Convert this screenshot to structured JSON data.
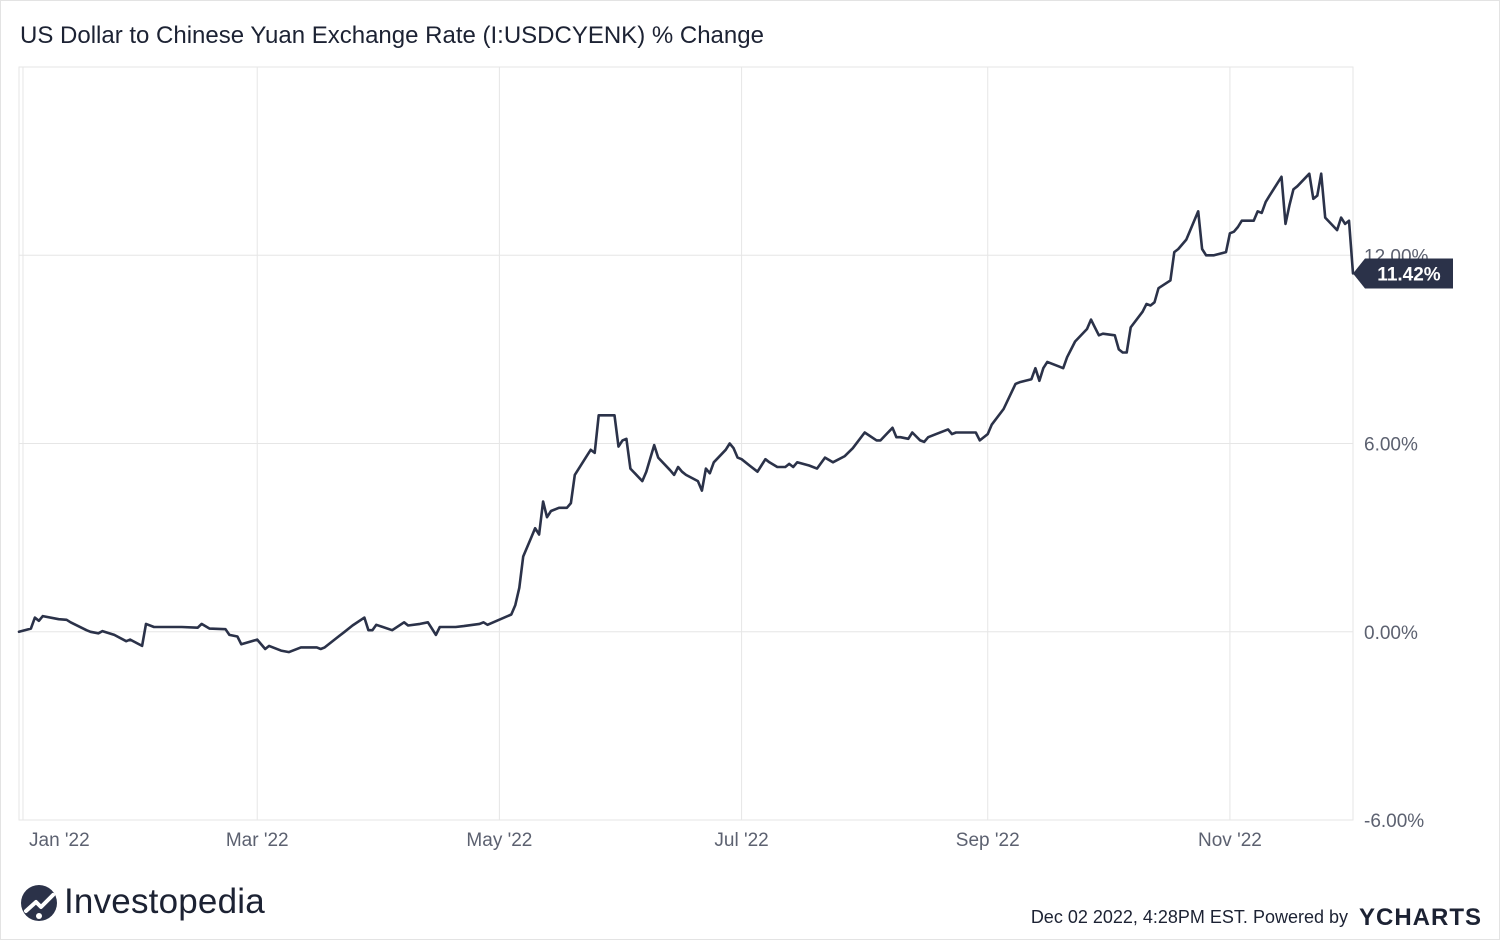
{
  "colors": {
    "line": "#2b3249",
    "grid": "#e6e6e6",
    "badge": "#2b3249",
    "text": "#1c2233",
    "tick": "#5c6170"
  },
  "chart_data": {
    "type": "line",
    "title": "US Dollar to Chinese Yuan Exchange Rate (I:USDCYENK) % Change",
    "xlabel": "",
    "ylabel": "",
    "x_range": [
      "2021-12-31",
      "2022-12-02"
    ],
    "ylim": [
      -6,
      18
    ],
    "y_ticks": [
      -6,
      0,
      6,
      12
    ],
    "y_tick_labels": [
      "-6.00%",
      "0.00%",
      "6.00%",
      "12.00%"
    ],
    "x_ticks": [
      "2022-01-01",
      "2022-03-01",
      "2022-05-01",
      "2022-07-01",
      "2022-09-01",
      "2022-11-01"
    ],
    "x_tick_labels": [
      "Jan '22",
      "Mar '22",
      "May '22",
      "Jul '22",
      "Sep '22",
      "Nov '22"
    ],
    "grid": true,
    "last_value_label": "11.42%",
    "series": [
      {
        "values": [
          [
            "2021-12-31",
            0.0
          ],
          [
            "2022-01-03",
            0.1
          ],
          [
            "2022-01-04",
            0.45
          ],
          [
            "2022-01-05",
            0.35
          ],
          [
            "2022-01-06",
            0.5
          ],
          [
            "2022-01-10",
            0.4
          ],
          [
            "2022-01-12",
            0.38
          ],
          [
            "2022-01-13",
            0.3
          ],
          [
            "2022-01-17",
            0.05
          ],
          [
            "2022-01-18",
            0.0
          ],
          [
            "2022-01-20",
            -0.05
          ],
          [
            "2022-01-21",
            0.02
          ],
          [
            "2022-01-24",
            -0.1
          ],
          [
            "2022-01-27",
            -0.3
          ],
          [
            "2022-01-28",
            -0.25
          ],
          [
            "2022-01-31",
            -0.45
          ],
          [
            "2022-02-01",
            0.25
          ],
          [
            "2022-02-03",
            0.15
          ],
          [
            "2022-02-07",
            0.15
          ],
          [
            "2022-02-10",
            0.15
          ],
          [
            "2022-02-14",
            0.13
          ],
          [
            "2022-02-15",
            0.25
          ],
          [
            "2022-02-17",
            0.1
          ],
          [
            "2022-02-21",
            0.08
          ],
          [
            "2022-02-22",
            -0.1
          ],
          [
            "2022-02-24",
            -0.15
          ],
          [
            "2022-02-25",
            -0.4
          ],
          [
            "2022-03-01",
            -0.25
          ],
          [
            "2022-03-03",
            -0.55
          ],
          [
            "2022-03-04",
            -0.45
          ],
          [
            "2022-03-07",
            -0.6
          ],
          [
            "2022-03-09",
            -0.65
          ],
          [
            "2022-03-12",
            -0.5
          ],
          [
            "2022-03-16",
            -0.5
          ],
          [
            "2022-03-17",
            -0.55
          ],
          [
            "2022-03-18",
            -0.5
          ],
          [
            "2022-03-21",
            -0.2
          ],
          [
            "2022-03-23",
            0.0
          ],
          [
            "2022-03-25",
            0.2
          ],
          [
            "2022-03-28",
            0.45
          ],
          [
            "2022-03-29",
            0.05
          ],
          [
            "2022-03-30",
            0.05
          ],
          [
            "2022-03-31",
            0.22
          ],
          [
            "2022-04-04",
            0.05
          ],
          [
            "2022-04-07",
            0.3
          ],
          [
            "2022-04-08",
            0.2
          ],
          [
            "2022-04-11",
            0.25
          ],
          [
            "2022-04-13",
            0.3
          ],
          [
            "2022-04-14",
            0.1
          ],
          [
            "2022-04-15",
            -0.1
          ],
          [
            "2022-04-16",
            0.15
          ],
          [
            "2022-04-20",
            0.15
          ],
          [
            "2022-04-22",
            0.18
          ],
          [
            "2022-04-26",
            0.25
          ],
          [
            "2022-04-27",
            0.3
          ],
          [
            "2022-04-28",
            0.22
          ],
          [
            "2022-05-04",
            0.55
          ],
          [
            "2022-05-05",
            0.85
          ],
          [
            "2022-05-06",
            1.4
          ],
          [
            "2022-05-07",
            2.4
          ],
          [
            "2022-05-09",
            3.0
          ],
          [
            "2022-05-10",
            3.3
          ],
          [
            "2022-05-11",
            3.1
          ],
          [
            "2022-05-12",
            4.15
          ],
          [
            "2022-05-13",
            3.65
          ],
          [
            "2022-05-14",
            3.85
          ],
          [
            "2022-05-16",
            3.95
          ],
          [
            "2022-05-18",
            3.95
          ],
          [
            "2022-05-19",
            4.1
          ],
          [
            "2022-05-20",
            5.0
          ],
          [
            "2022-05-23",
            5.6
          ],
          [
            "2022-05-24",
            5.8
          ],
          [
            "2022-05-25",
            5.7
          ],
          [
            "2022-05-26",
            6.9
          ],
          [
            "2022-05-30",
            6.9
          ],
          [
            "2022-05-31",
            5.9
          ],
          [
            "2022-06-01",
            6.1
          ],
          [
            "2022-06-02",
            6.15
          ],
          [
            "2022-06-03",
            5.2
          ],
          [
            "2022-06-06",
            4.8
          ],
          [
            "2022-06-07",
            5.1
          ],
          [
            "2022-06-09",
            5.95
          ],
          [
            "2022-06-10",
            5.55
          ],
          [
            "2022-06-13",
            5.15
          ],
          [
            "2022-06-14",
            5.0
          ],
          [
            "2022-06-15",
            5.25
          ],
          [
            "2022-06-16",
            5.1
          ],
          [
            "2022-06-17",
            5.0
          ],
          [
            "2022-06-20",
            4.8
          ],
          [
            "2022-06-21",
            4.5
          ],
          [
            "2022-06-22",
            5.2
          ],
          [
            "2022-06-23",
            5.05
          ],
          [
            "2022-06-24",
            5.4
          ],
          [
            "2022-06-27",
            5.8
          ],
          [
            "2022-06-28",
            6.0
          ],
          [
            "2022-06-29",
            5.85
          ],
          [
            "2022-06-30",
            5.55
          ],
          [
            "2022-07-01",
            5.5
          ],
          [
            "2022-07-03",
            5.3
          ],
          [
            "2022-07-05",
            5.1
          ],
          [
            "2022-07-06",
            5.3
          ],
          [
            "2022-07-07",
            5.5
          ],
          [
            "2022-07-08",
            5.4
          ],
          [
            "2022-07-10",
            5.25
          ],
          [
            "2022-07-12",
            5.25
          ],
          [
            "2022-07-13",
            5.35
          ],
          [
            "2022-07-14",
            5.25
          ],
          [
            "2022-07-15",
            5.4
          ],
          [
            "2022-07-18",
            5.3
          ],
          [
            "2022-07-20",
            5.2
          ],
          [
            "2022-07-22",
            5.55
          ],
          [
            "2022-07-24",
            5.4
          ],
          [
            "2022-07-27",
            5.6
          ],
          [
            "2022-07-29",
            5.85
          ],
          [
            "2022-08-01",
            6.35
          ],
          [
            "2022-08-04",
            6.1
          ],
          [
            "2022-08-05",
            6.1
          ],
          [
            "2022-08-08",
            6.5
          ],
          [
            "2022-08-09",
            6.2
          ],
          [
            "2022-08-10",
            6.2
          ],
          [
            "2022-08-12",
            6.15
          ],
          [
            "2022-08-13",
            6.35
          ],
          [
            "2022-08-15",
            6.1
          ],
          [
            "2022-08-16",
            6.05
          ],
          [
            "2022-08-17",
            6.2
          ],
          [
            "2022-08-19",
            6.3
          ],
          [
            "2022-08-22",
            6.45
          ],
          [
            "2022-08-23",
            6.3
          ],
          [
            "2022-08-24",
            6.35
          ],
          [
            "2022-08-26",
            6.35
          ],
          [
            "2022-08-29",
            6.35
          ],
          [
            "2022-08-30",
            6.1
          ],
          [
            "2022-09-01",
            6.3
          ],
          [
            "2022-09-02",
            6.6
          ],
          [
            "2022-09-05",
            7.1
          ],
          [
            "2022-09-08",
            7.9
          ],
          [
            "2022-09-09",
            7.95
          ],
          [
            "2022-09-12",
            8.05
          ],
          [
            "2022-09-13",
            8.4
          ],
          [
            "2022-09-14",
            8.0
          ],
          [
            "2022-09-15",
            8.4
          ],
          [
            "2022-09-16",
            8.6
          ],
          [
            "2022-09-19",
            8.45
          ],
          [
            "2022-09-20",
            8.4
          ],
          [
            "2022-09-21",
            8.75
          ],
          [
            "2022-09-22",
            9.0
          ],
          [
            "2022-09-23",
            9.25
          ],
          [
            "2022-09-26",
            9.65
          ],
          [
            "2022-09-27",
            9.95
          ],
          [
            "2022-09-28",
            9.7
          ],
          [
            "2022-09-29",
            9.45
          ],
          [
            "2022-09-30",
            9.5
          ],
          [
            "2022-10-03",
            9.45
          ],
          [
            "2022-10-04",
            9.0
          ],
          [
            "2022-10-05",
            8.9
          ],
          [
            "2022-10-06",
            8.9
          ],
          [
            "2022-10-07",
            9.7
          ],
          [
            "2022-10-10",
            10.2
          ],
          [
            "2022-10-11",
            10.45
          ],
          [
            "2022-10-12",
            10.4
          ],
          [
            "2022-10-13",
            10.5
          ],
          [
            "2022-10-14",
            10.95
          ],
          [
            "2022-10-17",
            11.2
          ],
          [
            "2022-10-18",
            12.1
          ],
          [
            "2022-10-19",
            12.2
          ],
          [
            "2022-10-21",
            12.5
          ],
          [
            "2022-10-24",
            13.4
          ],
          [
            "2022-10-25",
            12.2
          ],
          [
            "2022-10-26",
            12.0
          ],
          [
            "2022-10-28",
            12.0
          ],
          [
            "2022-10-31",
            12.1
          ],
          [
            "2022-11-01",
            12.7
          ],
          [
            "2022-11-02",
            12.75
          ],
          [
            "2022-11-03",
            12.9
          ],
          [
            "2022-11-04",
            13.1
          ],
          [
            "2022-11-07",
            13.1
          ],
          [
            "2022-11-08",
            13.4
          ],
          [
            "2022-11-09",
            13.35
          ],
          [
            "2022-11-10",
            13.7
          ],
          [
            "2022-11-11",
            13.9
          ],
          [
            "2022-11-14",
            14.5
          ],
          [
            "2022-11-15",
            13.0
          ],
          [
            "2022-11-16",
            13.6
          ],
          [
            "2022-11-17",
            14.1
          ],
          [
            "2022-11-18",
            14.2
          ],
          [
            "2022-11-21",
            14.6
          ],
          [
            "2022-11-22",
            13.8
          ],
          [
            "2022-11-23",
            13.9
          ],
          [
            "2022-11-24",
            14.6
          ],
          [
            "2022-11-25",
            13.2
          ],
          [
            "2022-11-28",
            12.8
          ],
          [
            "2022-11-29",
            13.2
          ],
          [
            "2022-11-30",
            13.0
          ],
          [
            "2022-12-01",
            13.1
          ],
          [
            "2022-12-02",
            11.42
          ]
        ]
      }
    ]
  },
  "brand": {
    "name": "Investopedia"
  },
  "footer": {
    "note": "Dec 02 2022, 4:28PM EST. Powered by",
    "provider": "YCHARTS"
  }
}
